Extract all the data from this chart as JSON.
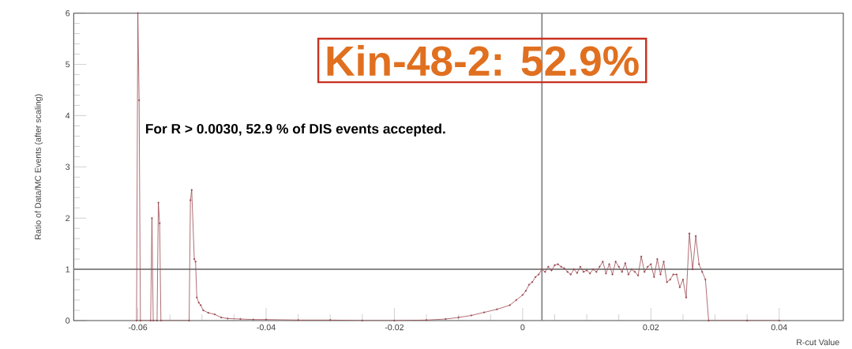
{
  "chart_data": {
    "type": "line",
    "xlabel": "R-cut Value",
    "ylabel": "Ratio of Data/MC Events (after scaling)",
    "annotations": [
      "Kin-48-2: 52.9%",
      "For R > 0.0030, 52.9 % of DIS events accepted."
    ],
    "xlim": [
      -0.07,
      0.05
    ],
    "ylim": [
      0,
      6
    ],
    "xticks": [
      -0.06,
      -0.04,
      -0.02,
      0,
      0.02,
      0.04
    ],
    "yticks": [
      0,
      1,
      2,
      3,
      4,
      5,
      6
    ],
    "grid": false,
    "marker": "circle",
    "line_style": "solid",
    "ref_lines": [
      {
        "axis": "y",
        "value": 1,
        "color": "#888888"
      },
      {
        "axis": "x",
        "value": 0.003,
        "color": "#888888"
      }
    ],
    "series": [
      {
        "color": "#9b4a52",
        "x": [
          -0.0602,
          -0.06,
          -0.0598,
          -0.0596,
          -0.058,
          -0.0578,
          -0.0576,
          -0.057,
          -0.0568,
          -0.0566,
          -0.0564,
          -0.052,
          -0.0518,
          -0.0516,
          -0.0512,
          -0.051,
          -0.0508,
          -0.0505,
          -0.0502,
          -0.0498,
          -0.049,
          -0.048,
          -0.047,
          -0.046,
          -0.044,
          -0.042,
          -0.04,
          -0.035,
          -0.03,
          -0.025,
          -0.02,
          -0.015,
          -0.012,
          -0.01,
          -0.008,
          -0.006,
          -0.004,
          -0.002,
          -0.001,
          0,
          0.0005,
          0.001,
          0.0015,
          0.002,
          0.0025,
          0.003,
          0.0035,
          0.004,
          0.0045,
          0.005,
          0.0055,
          0.006,
          0.0065,
          0.007,
          0.0075,
          0.008,
          0.0085,
          0.009,
          0.0095,
          0.01,
          0.0105,
          0.011,
          0.0115,
          0.012,
          0.0125,
          0.013,
          0.0135,
          0.014,
          0.0145,
          0.015,
          0.0155,
          0.016,
          0.0165,
          0.017,
          0.0175,
          0.018,
          0.0185,
          0.019,
          0.0195,
          0.02,
          0.0205,
          0.021,
          0.0215,
          0.022,
          0.0225,
          0.023,
          0.0235,
          0.024,
          0.0245,
          0.025,
          0.0255,
          0.026,
          0.0265,
          0.027,
          0.0275,
          0.028,
          0.0285,
          0.029,
          0.035,
          0.04
        ],
        "values": [
          0,
          6,
          4.3,
          0,
          0,
          2.0,
          0,
          0,
          2.3,
          1.9,
          0,
          0,
          2.35,
          2.55,
          1.2,
          1.15,
          0.45,
          0.35,
          0.3,
          0.2,
          0.15,
          0.12,
          0.06,
          0.04,
          0.03,
          0.02,
          0.02,
          0.01,
          0.01,
          0,
          0,
          0.01,
          0.03,
          0.06,
          0.1,
          0.16,
          0.22,
          0.3,
          0.4,
          0.5,
          0.58,
          0.7,
          0.75,
          0.85,
          0.9,
          1.0,
          0.95,
          1.05,
          0.98,
          1.08,
          1.1,
          1.05,
          1.02,
          0.95,
          0.9,
          1.0,
          0.93,
          1.05,
          0.95,
          0.98,
          0.92,
          1.0,
          0.95,
          1.05,
          1.15,
          0.92,
          1.1,
          0.9,
          1.15,
          1.05,
          0.95,
          1.12,
          0.9,
          1.0,
          0.95,
          0.88,
          1.25,
          0.95,
          1.05,
          1.1,
          0.85,
          1.2,
          0.9,
          1.15,
          0.75,
          0.8,
          0.9,
          0.9,
          0.65,
          0.8,
          0.45,
          1.7,
          1.0,
          1.65,
          1.1,
          0.95,
          0.8,
          0,
          0,
          0
        ]
      }
    ]
  }
}
